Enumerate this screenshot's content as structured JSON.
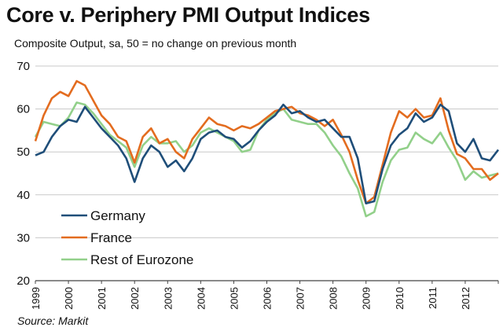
{
  "chart_data": {
    "type": "line",
    "title": "Core v. Periphery PMI Output Indices",
    "subtitle": "Composite Output, sa, 50 = no change on previous month",
    "source": "Source: Markit",
    "xlabel": "",
    "ylabel": "",
    "ylim": [
      20,
      70
    ],
    "yticks": [
      20,
      30,
      40,
      50,
      60,
      70
    ],
    "xlim": [
      1999.0,
      2013.0
    ],
    "xticks": [
      "1999",
      "2000",
      "2001",
      "2002",
      "2003",
      "2004",
      "2005",
      "2006",
      "2007",
      "2008",
      "2009",
      "2010",
      "2011",
      "2012"
    ],
    "grid": true,
    "legend_position": "bottom-left",
    "x": [
      1999.0,
      1999.25,
      1999.5,
      1999.75,
      2000.0,
      2000.25,
      2000.5,
      2000.75,
      2001.0,
      2001.25,
      2001.5,
      2001.75,
      2002.0,
      2002.25,
      2002.5,
      2002.75,
      2003.0,
      2003.25,
      2003.5,
      2003.75,
      2004.0,
      2004.25,
      2004.5,
      2004.75,
      2005.0,
      2005.25,
      2005.5,
      2005.75,
      2006.0,
      2006.25,
      2006.5,
      2006.75,
      2007.0,
      2007.25,
      2007.5,
      2007.75,
      2008.0,
      2008.25,
      2008.5,
      2008.75,
      2009.0,
      2009.25,
      2009.5,
      2009.75,
      2010.0,
      2010.25,
      2010.5,
      2010.75,
      2011.0,
      2011.25,
      2011.5,
      2011.75,
      2012.0,
      2012.25,
      2012.5,
      2012.75,
      2013.0
    ],
    "series": [
      {
        "name": "Germany",
        "color": "#1f4e79",
        "values": [
          49.2,
          50.0,
          53.5,
          56.0,
          57.5,
          57.0,
          60.5,
          58.0,
          55.5,
          53.5,
          51.5,
          48.5,
          43.0,
          48.5,
          51.5,
          50.0,
          46.5,
          48.0,
          45.5,
          48.5,
          53.0,
          54.5,
          55.0,
          53.5,
          53.0,
          51.0,
          52.5,
          55.0,
          57.0,
          58.5,
          61.0,
          59.0,
          59.5,
          58.0,
          57.0,
          57.5,
          55.5,
          53.5,
          53.5,
          48.5,
          38.0,
          38.5,
          46.0,
          51.5,
          54.0,
          55.5,
          59.0,
          57.0,
          58.0,
          61.0,
          59.5,
          52.0,
          50.0,
          53.0,
          48.5,
          48.0,
          50.5
        ]
      },
      {
        "name": "France",
        "color": "#e36c1f",
        "values": [
          52.5,
          58.5,
          62.5,
          64.0,
          63.0,
          66.5,
          65.5,
          62.0,
          58.5,
          56.5,
          53.5,
          52.5,
          47.5,
          53.5,
          55.5,
          52.0,
          53.0,
          50.0,
          48.5,
          53.0,
          55.5,
          58.0,
          56.5,
          56.0,
          55.0,
          56.0,
          55.5,
          56.5,
          58.0,
          59.5,
          60.0,
          60.5,
          59.0,
          58.5,
          57.5,
          56.0,
          57.5,
          54.0,
          50.0,
          43.5,
          38.0,
          39.5,
          47.0,
          54.5,
          59.5,
          58.0,
          60.0,
          58.0,
          58.5,
          62.5,
          55.0,
          49.5,
          48.5,
          46.0,
          46.0,
          43.5,
          45.0
        ]
      },
      {
        "name": "Rest of Eurozone",
        "color": "#92d08a",
        "values": [
          53.5,
          57.0,
          56.5,
          56.0,
          58.0,
          61.5,
          61.0,
          59.0,
          56.5,
          54.0,
          52.5,
          51.0,
          46.5,
          51.5,
          53.5,
          52.0,
          52.0,
          52.5,
          50.0,
          51.5,
          54.5,
          55.5,
          54.5,
          53.5,
          52.5,
          50.0,
          50.5,
          55.0,
          57.5,
          59.0,
          60.0,
          57.5,
          57.0,
          56.5,
          56.5,
          54.5,
          51.5,
          49.0,
          45.0,
          41.5,
          35.0,
          36.0,
          43.0,
          48.0,
          50.5,
          51.0,
          54.5,
          53.0,
          52.0,
          54.5,
          51.0,
          48.0,
          43.5,
          45.5,
          44.0,
          44.5,
          45.0
        ]
      }
    ]
  }
}
